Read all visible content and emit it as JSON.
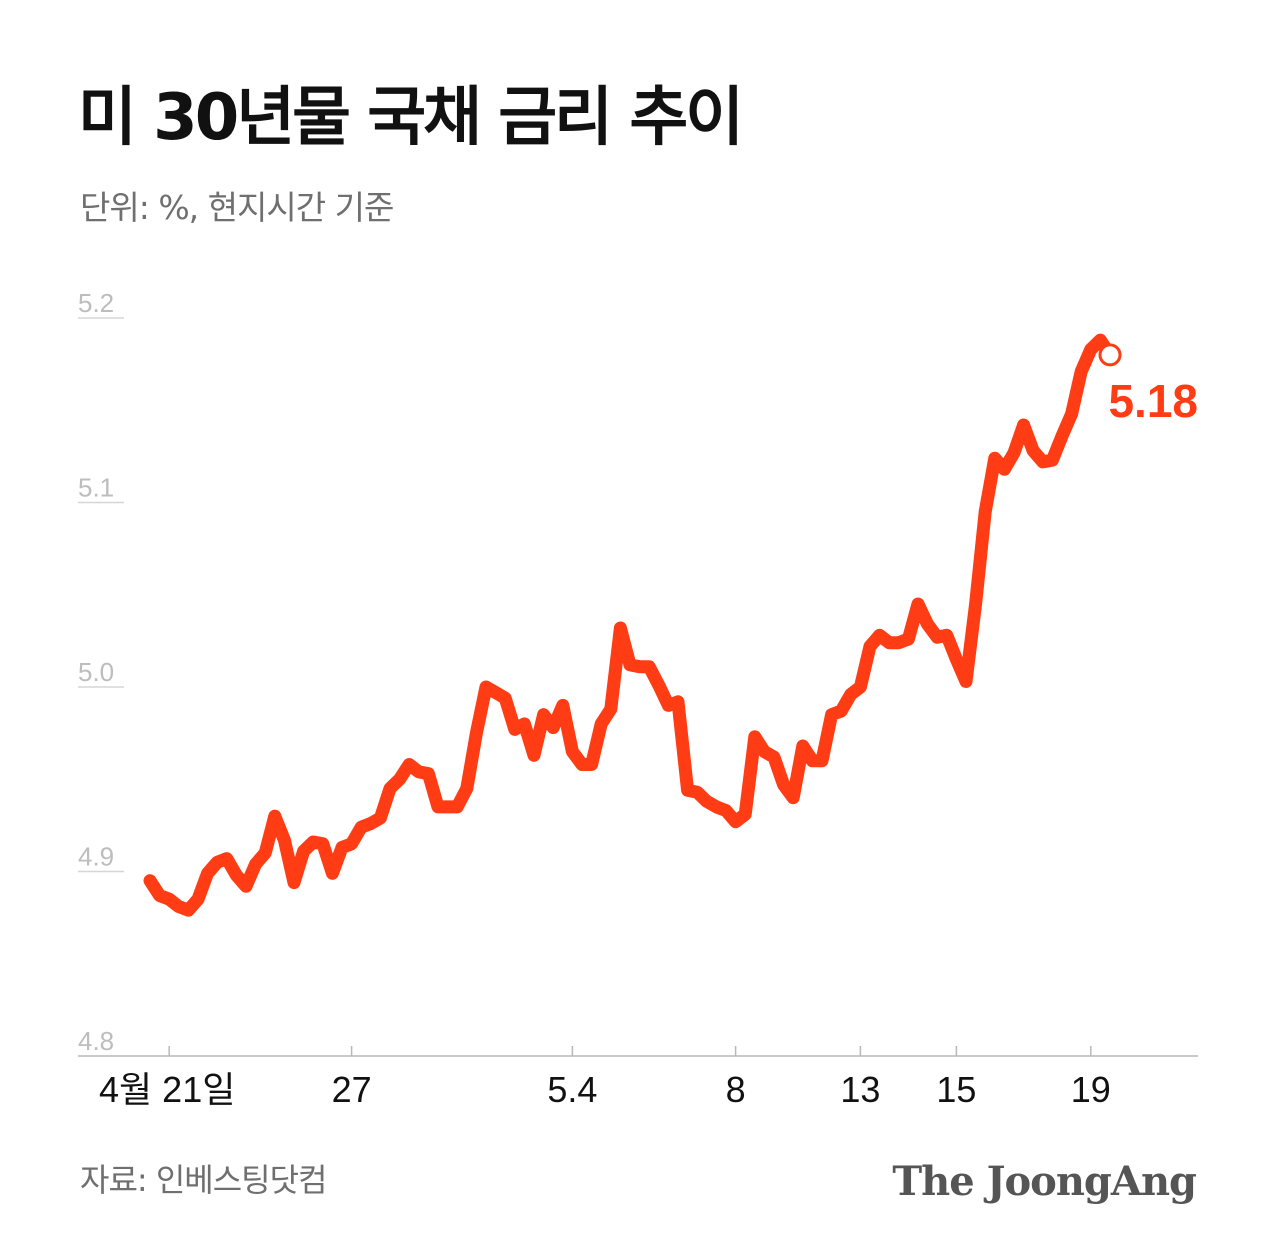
{
  "title": "미 30년물 국채 금리 추이",
  "subtitle": "단위: %, 현지시간 기준",
  "source": "자료: 인베스팅닷컴",
  "logo": "The JoongAng",
  "colors": {
    "line": "#ff3c14",
    "axis": "#b8b8b8",
    "tick_label": "#bdbdbd",
    "text": "#111111",
    "muted": "#6f6f6f"
  },
  "chart_data": {
    "type": "line",
    "title": "미 30년물 국채 금리 추이",
    "ylim": [
      4.8,
      5.2
    ],
    "y_ticks": [
      "4.8",
      "4.9",
      "5.0",
      "5.1",
      "5.2"
    ],
    "x_ticks": [
      "4월 21일",
      "27",
      "5.4",
      "8",
      "13",
      "15",
      "19"
    ],
    "last_value_label": "5.18",
    "grid": false,
    "series": [
      {
        "values": [
          4.895,
          4.887,
          4.885,
          4.881,
          4.879,
          4.885,
          4.899,
          4.905,
          4.907,
          4.898,
          4.892,
          4.904,
          4.91,
          4.93,
          4.917,
          4.894,
          4.911,
          4.916,
          4.915,
          4.899,
          4.913,
          4.915,
          4.924,
          4.926,
          4.929,
          4.945,
          4.95,
          4.958,
          4.954,
          4.953,
          4.935,
          4.935,
          4.935,
          4.945,
          4.975,
          5.0,
          4.997,
          4.994,
          4.977,
          4.98,
          4.963,
          4.985,
          4.978,
          4.99,
          4.965,
          4.958,
          4.958,
          4.98,
          4.988,
          5.032,
          5.012,
          5.011,
          5.011,
          5.001,
          4.99,
          4.992,
          4.944,
          4.943,
          4.938,
          4.935,
          4.933,
          4.927,
          4.931,
          4.973,
          4.965,
          4.962,
          4.947,
          4.94,
          4.968,
          4.96,
          4.96,
          4.985,
          4.987,
          4.996,
          5.0,
          5.022,
          5.028,
          5.024,
          5.024,
          5.026,
          5.045,
          5.034,
          5.027,
          5.028,
          5.015,
          5.003,
          5.045,
          5.095,
          5.124,
          5.118,
          5.127,
          5.142,
          5.128,
          5.122,
          5.123,
          5.136,
          5.148,
          5.171,
          5.183,
          5.188,
          5.18
        ]
      }
    ]
  }
}
